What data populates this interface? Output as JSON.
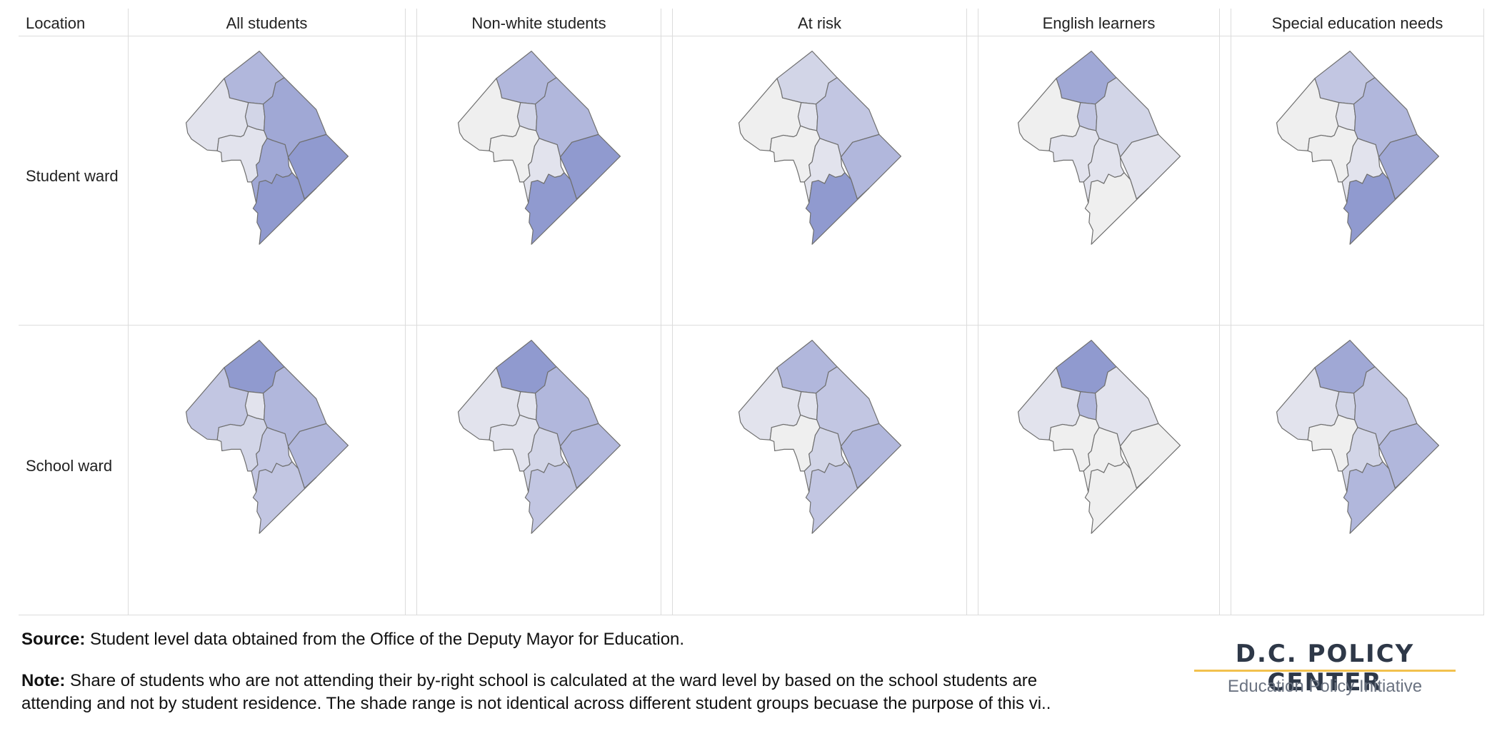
{
  "table": {
    "location_header": "Location",
    "columns": [
      "All students",
      "Non-white students",
      "At risk",
      "English learners",
      "Special education needs"
    ],
    "rows": [
      "Student ward",
      "School ward"
    ]
  },
  "colors": {
    "scale": [
      "#efefef",
      "#e2e3ed",
      "#d2d5e7",
      "#c2c6e2",
      "#b1b7dc",
      "#a0a8d5",
      "#909acf"
    ],
    "ward_border": "#6f6f6f",
    "gridline": "#dcdcdc",
    "logo_rule": "#f2c14e"
  },
  "map_levels": [
    [
      [
        1,
        4,
        2,
        1,
        5,
        5,
        6,
        6
      ],
      [
        0,
        4,
        2,
        0,
        4,
        1,
        6,
        6
      ],
      [
        0,
        2,
        1,
        0,
        3,
        1,
        4,
        6
      ],
      [
        0,
        5,
        3,
        1,
        2,
        1,
        1,
        0
      ],
      [
        0,
        3,
        1,
        0,
        4,
        1,
        5,
        6
      ]
    ],
    [
      [
        3,
        6,
        1,
        2,
        4,
        3,
        4,
        3
      ],
      [
        1,
        6,
        1,
        1,
        4,
        2,
        4,
        3
      ],
      [
        1,
        4,
        1,
        0,
        3,
        2,
        4,
        3
      ],
      [
        1,
        6,
        4,
        0,
        1,
        0,
        0,
        0
      ],
      [
        1,
        5,
        2,
        0,
        3,
        2,
        4,
        4
      ]
    ]
  ],
  "footer": {
    "source_label": "Source:",
    "source_text": " Student level data obtained from the Office of the Deputy Mayor for Education.",
    "note_label": "Note:",
    "note_line1": " Share of students who are not attending their by-right school is calculated at the ward level by based on the school students are",
    "note_line2": "attending and not by student residence. The shade range is not identical across different student groups becuase the purpose of this vi.."
  },
  "logo": {
    "title": "D.C. POLICY CENTER",
    "subtitle": "Education Policy Initiative"
  }
}
